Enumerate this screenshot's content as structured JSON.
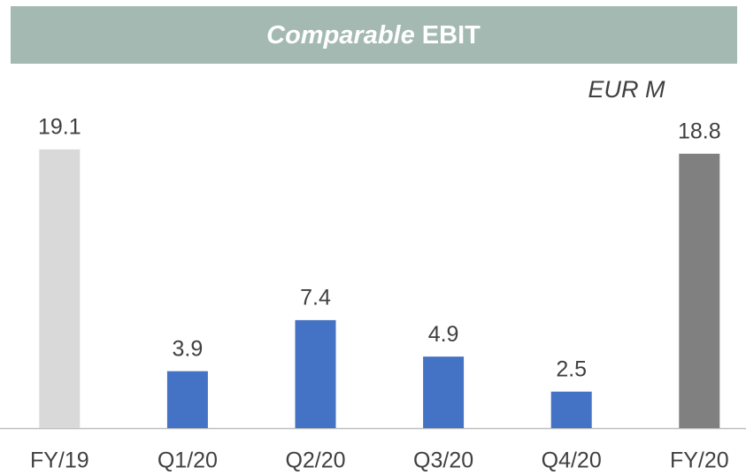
{
  "chart_data": {
    "type": "bar",
    "title": [
      "Comparable",
      "EBIT"
    ],
    "unit": "EUR M",
    "categories": [
      "FY/19",
      "Q1/20",
      "Q2/20",
      "Q3/20",
      "Q4/20",
      "FY/20"
    ],
    "values": [
      19.1,
      3.9,
      7.4,
      4.9,
      2.5,
      18.8
    ],
    "colors": [
      "#d9d9d9",
      "#4472c4",
      "#4472c4",
      "#4472c4",
      "#4472c4",
      "#808080"
    ],
    "ylim": [
      0,
      20
    ]
  }
}
